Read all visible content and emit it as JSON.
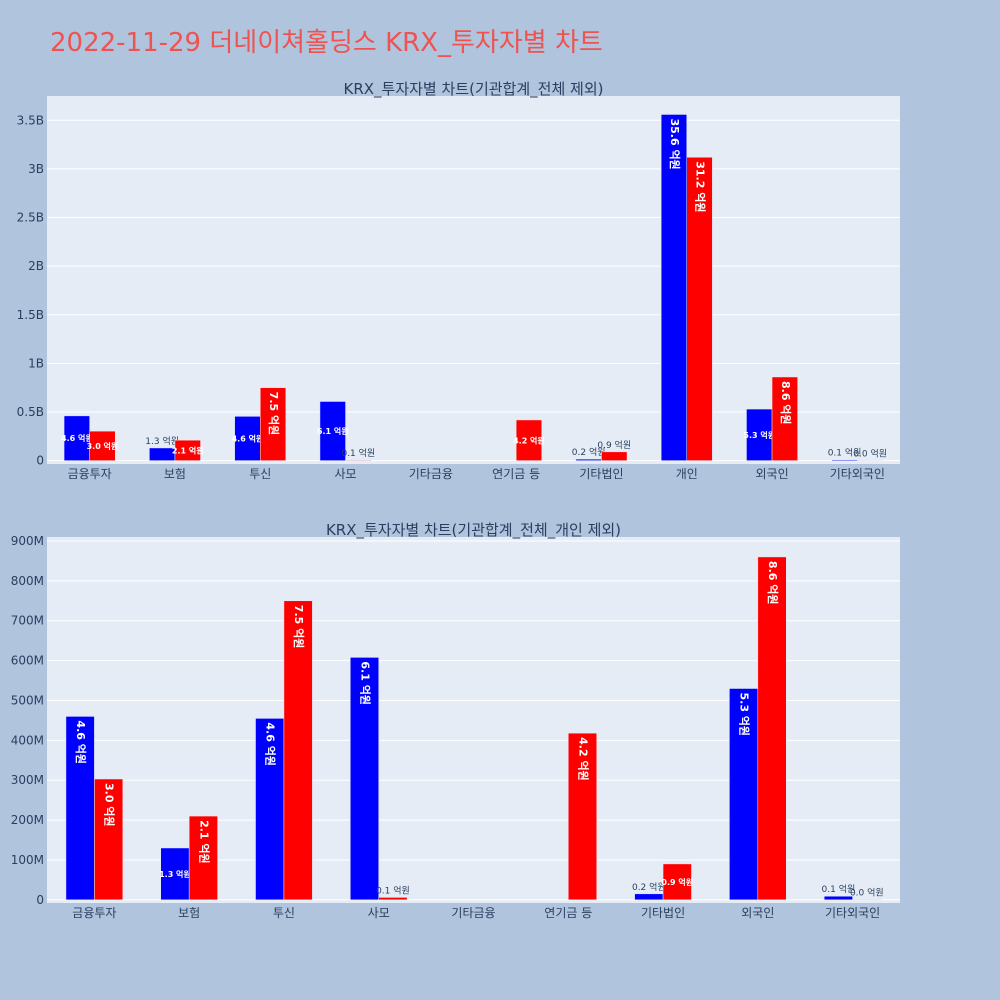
{
  "page": {
    "title": "2022-11-29 더네이쳐홀딩스 KRX_투자자별 차트"
  },
  "colors": {
    "buy": "#0000ff",
    "sell": "#ff0000",
    "title": "#ef5350",
    "background": "#b0c4de",
    "plot_bg": "#e5ecf6"
  },
  "chart_data": [
    {
      "type": "bar",
      "title": "KRX_투자자별 차트(기관합계_전체 제외)",
      "xlabel": "",
      "ylabel": "",
      "categories": [
        "금융투자",
        "보험",
        "투신",
        "사모",
        "기타금융",
        "연기금 등",
        "기타법인",
        "개인",
        "외국인",
        "기타외국인"
      ],
      "series": [
        {
          "values": [
            460000000,
            130000000,
            455000000,
            608000000,
            0,
            0,
            15000000,
            3560000000,
            530000000,
            9000000
          ],
          "labels": [
            "4.6 억원",
            "1.3 억원",
            "4.6 억원",
            "6.1 억원",
            "",
            "",
            "0.2 억원",
            "35.6 억원",
            "5.3 억원",
            "0.1 억원"
          ]
        },
        {
          "values": [
            303000000,
            210000000,
            750000000,
            6000000,
            0,
            418000000,
            90000000,
            3120000000,
            860000000,
            1000000
          ],
          "labels": [
            "3.0 억원",
            "2.1 억원",
            "7.5 억원",
            "0.1 억원",
            "",
            "4.2 억원",
            "0.9 억원",
            "31.2 억원",
            "8.6 억원",
            "0.0 억원"
          ]
        }
      ],
      "yticks": [
        "0",
        "0.5B",
        "1B",
        "1.5B",
        "2B",
        "2.5B",
        "3B",
        "3.5B"
      ],
      "ylim": [
        -35000000,
        3750000000
      ],
      "grid": true
    },
    {
      "type": "bar",
      "title": "KRX_투자자별 차트(기관합계_전체_개인 제외)",
      "xlabel": "",
      "ylabel": "",
      "categories": [
        "금융투자",
        "보험",
        "투신",
        "사모",
        "기타금융",
        "연기금 등",
        "기타법인",
        "외국인",
        "기타외국인"
      ],
      "series": [
        {
          "values": [
            460000000,
            130000000,
            455000000,
            608000000,
            0,
            0,
            15000000,
            530000000,
            9000000
          ],
          "labels": [
            "4.6 억원",
            "1.3 억원",
            "4.6 억원",
            "6.1 억원",
            "",
            "",
            "0.2 억원",
            "5.3 억원",
            "0.1 억원"
          ]
        },
        {
          "values": [
            303000000,
            210000000,
            750000000,
            6000000,
            0,
            418000000,
            90000000,
            860000000,
            1000000
          ],
          "labels": [
            "3.0 억원",
            "2.1 억원",
            "7.5 억원",
            "0.1 억원",
            "",
            "4.2 억원",
            "0.9 억원",
            "8.6 억원",
            "0.0 억원"
          ]
        }
      ],
      "yticks": [
        "0",
        "100M",
        "200M",
        "300M",
        "400M",
        "500M",
        "600M",
        "700M",
        "800M",
        "900M"
      ],
      "ylim": [
        -8000000,
        910000000
      ],
      "grid": true
    }
  ]
}
